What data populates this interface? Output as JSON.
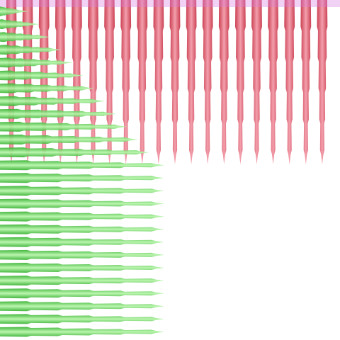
{
  "colors": {
    "background": "#ffffff",
    "red_spike_light": "#f39aa8",
    "red_spike": "#e45d6e",
    "red_spike_dark": "#c8374a",
    "green_spike_light": "#b5f5a8",
    "green_spike": "#63dc5a",
    "green_spike_dark": "#34b12e",
    "overlap_top_band": "#d77ae0"
  },
  "groups": {
    "red_vertical_spikes": {
      "count": 20,
      "direction": "down"
    },
    "green_horizontal_spikes": {
      "count": 26,
      "direction": "right"
    }
  }
}
